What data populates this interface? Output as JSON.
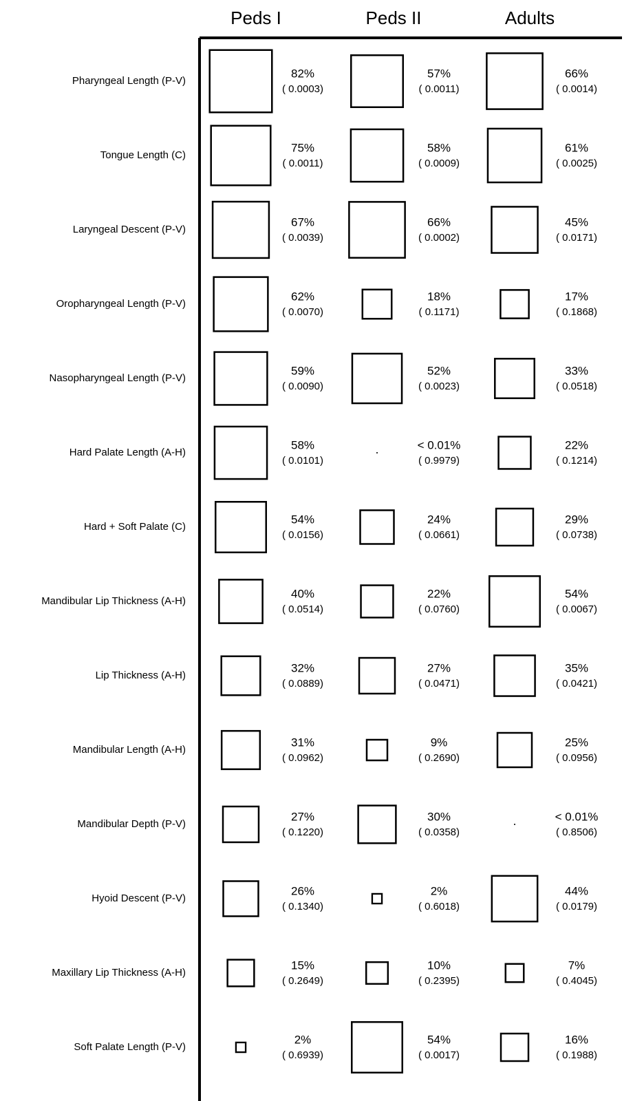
{
  "columns": [
    "Peds I",
    "Peds II",
    "Adults"
  ],
  "rows": [
    {
      "label": "Pharyngeal Length (P-V)",
      "cells": [
        {
          "value": 82,
          "value_label": "82%",
          "p": "( 0.0003)"
        },
        {
          "value": 57,
          "value_label": "57%",
          "p": "( 0.0011)"
        },
        {
          "value": 66,
          "value_label": "66%",
          "p": "( 0.0014)"
        }
      ]
    },
    {
      "label": "Tongue Length (C)",
      "cells": [
        {
          "value": 75,
          "value_label": "75%",
          "p": "( 0.0011)"
        },
        {
          "value": 58,
          "value_label": "58%",
          "p": "( 0.0009)"
        },
        {
          "value": 61,
          "value_label": "61%",
          "p": "( 0.0025)"
        }
      ]
    },
    {
      "label": "Laryngeal Descent (P-V)",
      "cells": [
        {
          "value": 67,
          "value_label": "67%",
          "p": "( 0.0039)"
        },
        {
          "value": 66,
          "value_label": "66%",
          "p": "( 0.0002)"
        },
        {
          "value": 45,
          "value_label": "45%",
          "p": "( 0.0171)"
        }
      ]
    },
    {
      "label": "Oropharyngeal Length (P-V)",
      "cells": [
        {
          "value": 62,
          "value_label": "62%",
          "p": "( 0.0070)"
        },
        {
          "value": 18,
          "value_label": "18%",
          "p": "( 0.1171)"
        },
        {
          "value": 17,
          "value_label": "17%",
          "p": "( 0.1868)"
        }
      ]
    },
    {
      "label": "Nasopharyngeal Length (P-V)",
      "cells": [
        {
          "value": 59,
          "value_label": "59%",
          "p": "( 0.0090)"
        },
        {
          "value": 52,
          "value_label": "52%",
          "p": "( 0.0023)"
        },
        {
          "value": 33,
          "value_label": "33%",
          "p": "( 0.0518)"
        }
      ]
    },
    {
      "label": "Hard Palate Length (A-H)",
      "cells": [
        {
          "value": 58,
          "value_label": "58%",
          "p": "( 0.0101)"
        },
        {
          "value": 0.01,
          "value_label": "< 0.01%",
          "p": "( 0.9979)"
        },
        {
          "value": 22,
          "value_label": "22%",
          "p": "( 0.1214)"
        }
      ]
    },
    {
      "label": "Hard + Soft Palate (C)",
      "cells": [
        {
          "value": 54,
          "value_label": "54%",
          "p": "( 0.0156)"
        },
        {
          "value": 24,
          "value_label": "24%",
          "p": "( 0.0661)"
        },
        {
          "value": 29,
          "value_label": "29%",
          "p": "( 0.0738)"
        }
      ]
    },
    {
      "label": "Mandibular Lip Thickness (A-H)",
      "cells": [
        {
          "value": 40,
          "value_label": "40%",
          "p": "( 0.0514)"
        },
        {
          "value": 22,
          "value_label": "22%",
          "p": "( 0.0760)"
        },
        {
          "value": 54,
          "value_label": "54%",
          "p": "( 0.0067)"
        }
      ]
    },
    {
      "label": "Lip Thickness (A-H)",
      "cells": [
        {
          "value": 32,
          "value_label": "32%",
          "p": "( 0.0889)"
        },
        {
          "value": 27,
          "value_label": "27%",
          "p": "( 0.0471)"
        },
        {
          "value": 35,
          "value_label": "35%",
          "p": "( 0.0421)"
        }
      ]
    },
    {
      "label": "Mandibular Length (A-H)",
      "cells": [
        {
          "value": 31,
          "value_label": "31%",
          "p": "( 0.0962)"
        },
        {
          "value": 9,
          "value_label": "9%",
          "p": "( 0.2690)"
        },
        {
          "value": 25,
          "value_label": "25%",
          "p": "( 0.0956)"
        }
      ]
    },
    {
      "label": "Mandibular Depth (P-V)",
      "cells": [
        {
          "value": 27,
          "value_label": "27%",
          "p": "( 0.1220)"
        },
        {
          "value": 30,
          "value_label": "30%",
          "p": "( 0.0358)"
        },
        {
          "value": 0.01,
          "value_label": "< 0.01%",
          "p": "( 0.8506)"
        }
      ]
    },
    {
      "label": "Hyoid Descent (P-V)",
      "cells": [
        {
          "value": 26,
          "value_label": "26%",
          "p": "( 0.1340)"
        },
        {
          "value": 2,
          "value_label": "2%",
          "p": "( 0.6018)"
        },
        {
          "value": 44,
          "value_label": "44%",
          "p": "( 0.0179)"
        }
      ]
    },
    {
      "label": "Maxillary Lip Thickness (A-H)",
      "cells": [
        {
          "value": 15,
          "value_label": "15%",
          "p": "( 0.2649)"
        },
        {
          "value": 10,
          "value_label": "10%",
          "p": "( 0.2395)"
        },
        {
          "value": 7,
          "value_label": "7%",
          "p": "( 0.4045)"
        }
      ]
    },
    {
      "label": "Soft Palate Length (P-V)",
      "cells": [
        {
          "value": 2,
          "value_label": "2%",
          "p": "( 0.6939)"
        },
        {
          "value": 54,
          "value_label": "54%",
          "p": "( 0.0017)"
        },
        {
          "value": 16,
          "value_label": "16%",
          "p": "( 0.1988)"
        }
      ]
    }
  ]
}
